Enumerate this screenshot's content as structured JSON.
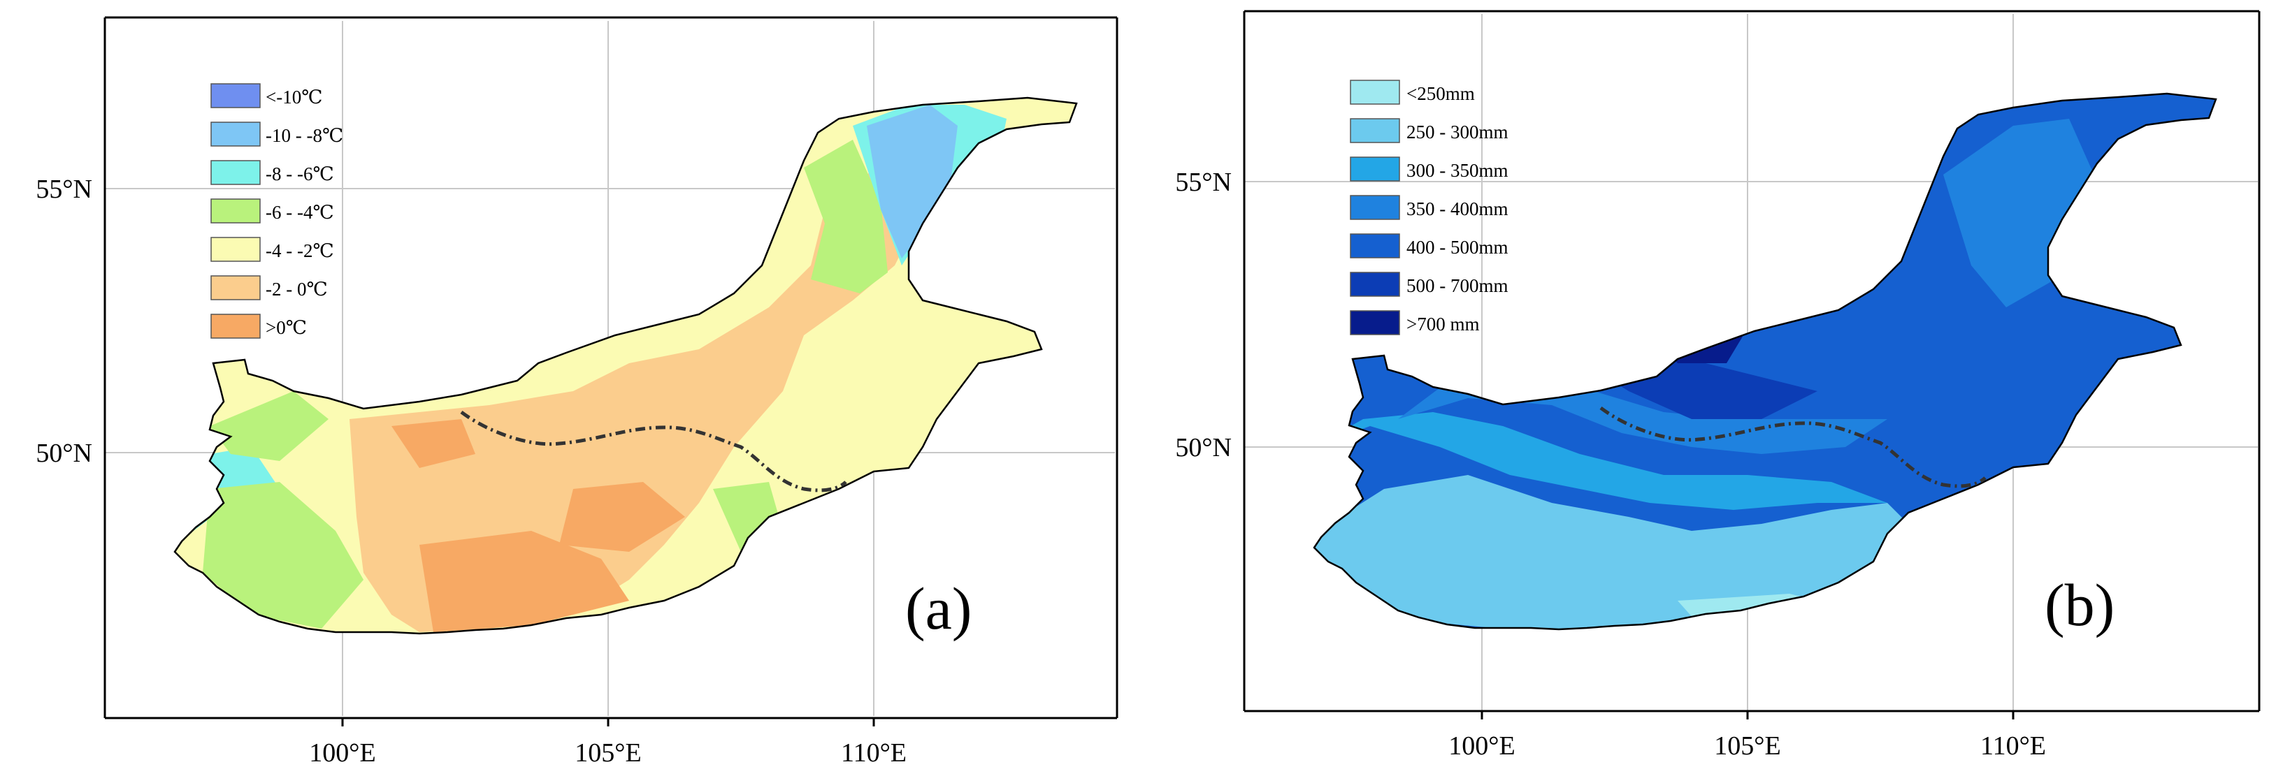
{
  "panels": [
    {
      "id": "a",
      "label": "(a)",
      "x_ticks": [
        "100°E",
        "105°E",
        "110°E"
      ],
      "y_ticks": [
        "55°N",
        "50°N"
      ],
      "legend": [
        {
          "label": "<-10℃",
          "color": "#6f8ff0"
        },
        {
          "label": "-10 - -8℃",
          "color": "#7ec6f5"
        },
        {
          "label": "-8 - -6℃",
          "color": "#7df2ea"
        },
        {
          "label": "-6 - -4℃",
          "color": "#b9f27c"
        },
        {
          "label": "-4 - -2℃",
          "color": "#fbfbb3"
        },
        {
          "label": "-2 - 0℃",
          "color": "#fbcd8d"
        },
        {
          "label": ">0℃",
          "color": "#f7a964"
        }
      ]
    },
    {
      "id": "b",
      "label": "(b)",
      "x_ticks": [
        "100°E",
        "105°E",
        "110°E"
      ],
      "y_ticks": [
        "55°N",
        "50°N"
      ],
      "legend": [
        {
          "label": "<250mm",
          "color": "#9fe9f0"
        },
        {
          "label": "250 - 300mm",
          "color": "#6ccaee"
        },
        {
          "label": "300 - 350mm",
          "color": "#23a6e6"
        },
        {
          "label": "350 - 400mm",
          "color": "#1f82df"
        },
        {
          "label": "400 - 500mm",
          "color": "#1560d0"
        },
        {
          "label": "500 - 700mm",
          "color": "#0c3db5"
        },
        {
          "label": ">700 mm",
          "color": "#071c8c"
        }
      ]
    }
  ]
}
